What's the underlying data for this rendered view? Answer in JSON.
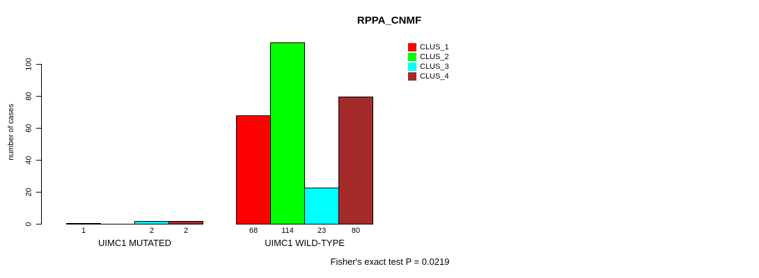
{
  "title": "RPPA_CNMF",
  "annotation": "Fisher's exact test P = 0.0219",
  "chart_data": {
    "type": "bar",
    "title": "RPPA_CNMF",
    "xlabel": "",
    "ylabel": "number of cases",
    "ylim": [
      0,
      115
    ],
    "yticks": [
      0,
      20,
      40,
      60,
      80,
      100
    ],
    "grid": false,
    "legend_position": "top-right-inside",
    "legend_box": false,
    "categories": [
      "UIMC1 MUTATED",
      "UIMC1 WILD-TYPE"
    ],
    "series": [
      {
        "name": "CLUS_1",
        "color": "#ff0000",
        "values": [
          1,
          68
        ]
      },
      {
        "name": "CLUS_2",
        "color": "#00ff00",
        "values": [
          0,
          114
        ]
      },
      {
        "name": "CLUS_3",
        "color": "#00ffff",
        "values": [
          2,
          23
        ]
      },
      {
        "name": "CLUS_4",
        "color": "#a52a2a",
        "values": [
          2,
          80
        ]
      }
    ],
    "bar_value_labels_shown": true,
    "zero_value_labels_hidden": true,
    "annotation": "Fisher's exact test P = 0.0219",
    "colors": {
      "bar_border": "#000000",
      "axis": "#000000",
      "text": "#000000",
      "background": "#ffffff"
    }
  }
}
